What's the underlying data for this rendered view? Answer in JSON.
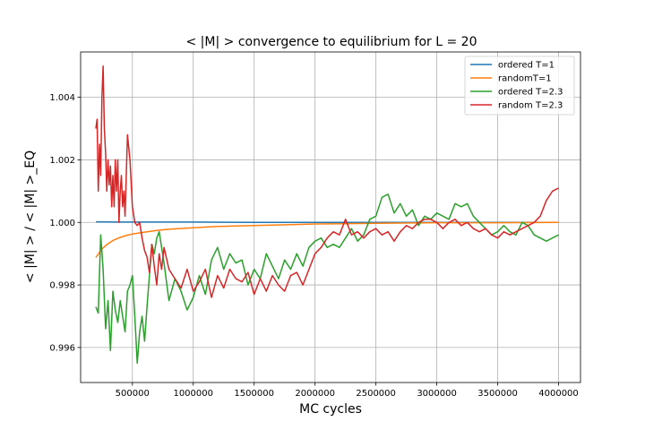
{
  "chart_data": {
    "type": "line",
    "title": "< |M| >  convergence to equilibrium for L = 20",
    "xlabel": "MC cycles",
    "ylabel": "< |M| > / < |M| >_EQ",
    "xlim": [
      75000,
      4180000
    ],
    "ylim": [
      0.99488,
      1.00545
    ],
    "xticks": [
      500000,
      1000000,
      1500000,
      2000000,
      2500000,
      3000000,
      3500000,
      4000000
    ],
    "xtick_labels": [
      "500000",
      "1000000",
      "1500000",
      "2000000",
      "2500000",
      "3000000",
      "3500000",
      "4000000"
    ],
    "yticks": [
      0.996,
      0.998,
      1.0,
      1.002,
      1.004
    ],
    "ytick_labels": [
      "0.996",
      "0.998",
      "1.000",
      "1.002",
      "1.004"
    ],
    "grid": true,
    "legend_position": "top-right",
    "series": [
      {
        "name": "ordered T=1",
        "color": "#1f77b4",
        "x": [
          200000,
          400000,
          600000,
          1000000,
          1500000,
          2000000,
          2500000,
          3000000,
          3500000,
          4000000
        ],
        "y": [
          1.00002,
          1.00001,
          1.00001,
          1.00001,
          1.0,
          1.0,
          1.0,
          1.0,
          1.0,
          1.0
        ]
      },
      {
        "name": "randomT=1",
        "color": "#ff7f0e",
        "x": [
          200000,
          250000,
          300000,
          350000,
          400000,
          450000,
          500000,
          600000,
          700000,
          800000,
          1000000,
          1200000,
          1500000,
          1800000,
          2000000,
          2500000,
          3000000,
          3500000,
          4000000
        ],
        "y": [
          0.99888,
          0.99915,
          0.99932,
          0.99944,
          0.99952,
          0.99958,
          0.99963,
          0.99969,
          0.99974,
          0.99978,
          0.99983,
          0.99987,
          0.9999,
          0.99993,
          0.99995,
          0.99997,
          0.99999,
          0.99999,
          1.0
        ]
      },
      {
        "name": "ordered T=2.3",
        "color": "#2ca02c",
        "x": [
          200000,
          220000,
          240000,
          260000,
          280000,
          300000,
          320000,
          340000,
          360000,
          380000,
          400000,
          420000,
          440000,
          460000,
          480000,
          500000,
          520000,
          540000,
          560000,
          580000,
          600000,
          620000,
          640000,
          660000,
          680000,
          700000,
          720000,
          760000,
          800000,
          850000,
          900000,
          950000,
          1000000,
          1050000,
          1100000,
          1150000,
          1200000,
          1250000,
          1300000,
          1350000,
          1400000,
          1450000,
          1500000,
          1550000,
          1600000,
          1650000,
          1700000,
          1750000,
          1800000,
          1850000,
          1900000,
          1950000,
          2000000,
          2050000,
          2100000,
          2150000,
          2200000,
          2250000,
          2300000,
          2350000,
          2400000,
          2450000,
          2500000,
          2550000,
          2600000,
          2650000,
          2700000,
          2750000,
          2800000,
          2850000,
          2900000,
          2950000,
          3000000,
          3050000,
          3100000,
          3150000,
          3200000,
          3250000,
          3300000,
          3350000,
          3400000,
          3450000,
          3500000,
          3550000,
          3600000,
          3650000,
          3700000,
          3750000,
          3800000,
          3850000,
          3900000,
          3950000,
          4000000
        ],
        "y": [
          0.9973,
          0.9971,
          0.9996,
          0.9985,
          0.9966,
          0.9975,
          0.9959,
          0.9978,
          0.9972,
          0.9968,
          0.9975,
          0.997,
          0.9965,
          0.9978,
          0.998,
          0.9983,
          0.997,
          0.9955,
          0.9965,
          0.997,
          0.9962,
          0.9973,
          0.9983,
          0.9993,
          0.999,
          0.9995,
          0.9997,
          0.9987,
          0.9975,
          0.9982,
          0.9978,
          0.9972,
          0.9976,
          0.9983,
          0.9977,
          0.9988,
          0.9992,
          0.9985,
          0.999,
          0.9987,
          0.9988,
          0.998,
          0.9985,
          0.9982,
          0.999,
          0.9986,
          0.9982,
          0.9988,
          0.9985,
          0.999,
          0.9986,
          0.9992,
          0.9994,
          0.9995,
          0.9992,
          0.9993,
          0.9992,
          0.9995,
          0.9998,
          0.9994,
          0.9996,
          1.0001,
          1.0002,
          1.0008,
          1.0009,
          1.0003,
          1.0006,
          1.0002,
          1.0004,
          0.9999,
          1.0002,
          1.0001,
          1.0003,
          1.0002,
          1.0001,
          1.0006,
          1.0005,
          1.0006,
          1.0002,
          1.0,
          0.9998,
          0.9996,
          0.9997,
          0.9999,
          0.9997,
          0.9996,
          1.0,
          0.9999,
          0.9996,
          0.9995,
          0.9994,
          0.9995,
          0.9996
        ]
      },
      {
        "name": "random T=2.3",
        "color": "#d62728",
        "x": [
          200000,
          210000,
          220000,
          230000,
          240000,
          250000,
          260000,
          270000,
          280000,
          290000,
          300000,
          310000,
          320000,
          330000,
          340000,
          350000,
          360000,
          370000,
          380000,
          390000,
          400000,
          410000,
          420000,
          430000,
          440000,
          460000,
          480000,
          500000,
          520000,
          540000,
          560000,
          580000,
          600000,
          620000,
          640000,
          660000,
          680000,
          700000,
          720000,
          740000,
          760000,
          800000,
          850000,
          900000,
          950000,
          1000000,
          1050000,
          1100000,
          1150000,
          1200000,
          1250000,
          1300000,
          1350000,
          1400000,
          1450000,
          1500000,
          1550000,
          1600000,
          1650000,
          1700000,
          1750000,
          1800000,
          1850000,
          1900000,
          1950000,
          2000000,
          2050000,
          2100000,
          2150000,
          2200000,
          2250000,
          2300000,
          2350000,
          2400000,
          2450000,
          2500000,
          2550000,
          2600000,
          2650000,
          2700000,
          2750000,
          2800000,
          2850000,
          2900000,
          2950000,
          3000000,
          3050000,
          3100000,
          3150000,
          3200000,
          3250000,
          3300000,
          3350000,
          3400000,
          3450000,
          3500000,
          3550000,
          3600000,
          3650000,
          3700000,
          3750000,
          3800000,
          3850000,
          3900000,
          3950000,
          4000000
        ],
        "y": [
          1.003,
          1.0033,
          1.001,
          1.0025,
          1.0015,
          1.004,
          1.005,
          1.003,
          1.0022,
          1.001,
          1.002,
          1.0012,
          1.0018,
          1.0005,
          1.0015,
          1.0005,
          1.002,
          1.001,
          1.002,
          1.0,
          1.001,
          1.0015,
          1.0005,
          1.001,
          1.0002,
          1.0028,
          1.002,
          1.0005,
          1.0,
          0.9999,
          1.0,
          0.9995,
          0.9991,
          0.9989,
          0.9984,
          0.9993,
          0.9986,
          0.998,
          0.999,
          0.9985,
          0.9992,
          0.9985,
          0.9982,
          0.9979,
          0.9985,
          0.9978,
          0.9981,
          0.9985,
          0.9976,
          0.9983,
          0.9979,
          0.9985,
          0.9982,
          0.9981,
          0.9984,
          0.9977,
          0.9982,
          0.9978,
          0.9983,
          0.998,
          0.9978,
          0.9983,
          0.9984,
          0.998,
          0.9985,
          0.999,
          0.9992,
          0.9995,
          0.9997,
          0.9996,
          1.0001,
          0.9996,
          0.9997,
          0.9995,
          0.9997,
          0.9998,
          0.9996,
          0.9997,
          0.9994,
          0.9997,
          0.9999,
          0.9998,
          1.0,
          1.0001,
          1.0001,
          1.0,
          0.9998,
          1.0,
          1.0001,
          0.9999,
          1.0,
          0.9998,
          0.9997,
          0.9998,
          0.9996,
          0.9995,
          0.9997,
          0.9996,
          0.9997,
          0.9998,
          0.9999,
          1.0,
          1.0002,
          1.0007,
          1.001,
          1.0011
        ]
      }
    ]
  }
}
